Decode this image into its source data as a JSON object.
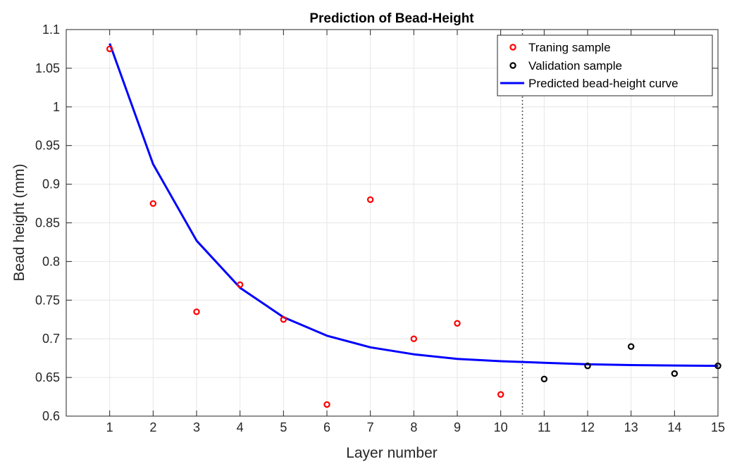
{
  "chart_data": {
    "type": "scatter",
    "title": "Prediction of Bead-Height",
    "xlabel": "Layer number",
    "ylabel": "Bead height (mm)",
    "xlim": [
      0,
      15
    ],
    "ylim": [
      0.6,
      1.1
    ],
    "x_ticks": [
      "1",
      "2",
      "3",
      "4",
      "5",
      "6",
      "7",
      "8",
      "9",
      "10",
      "11",
      "12",
      "13",
      "14",
      "15"
    ],
    "y_ticks": [
      "0.6",
      "0.65",
      "0.7",
      "0.75",
      "0.8",
      "0.85",
      "0.9",
      "0.95",
      "1",
      "1.05",
      "1.1"
    ],
    "grid": true,
    "legend_position": "top-right",
    "split_line_x": 10.5,
    "series": [
      {
        "name": "Traning sample",
        "kind": "marker",
        "color": "#ff0000",
        "x": [
          1,
          2,
          3,
          4,
          5,
          6,
          7,
          8,
          9,
          10
        ],
        "y": [
          1.075,
          0.875,
          0.735,
          0.77,
          0.725,
          0.615,
          0.88,
          0.7,
          0.72,
          0.628
        ]
      },
      {
        "name": "Validation sample",
        "kind": "marker",
        "color": "#000000",
        "x": [
          11,
          12,
          13,
          14,
          15
        ],
        "y": [
          0.648,
          0.665,
          0.69,
          0.655,
          0.665
        ]
      },
      {
        "name": "Predicted bead-height curve",
        "kind": "line",
        "color": "#0000ff",
        "x": [
          1,
          2,
          3,
          4,
          5,
          6,
          7,
          8,
          9,
          10,
          11,
          12,
          13,
          14,
          15
        ],
        "y": [
          1.082,
          0.926,
          0.827,
          0.766,
          0.728,
          0.704,
          0.689,
          0.68,
          0.674,
          0.671,
          0.669,
          0.667,
          0.666,
          0.6655,
          0.665
        ]
      }
    ]
  }
}
